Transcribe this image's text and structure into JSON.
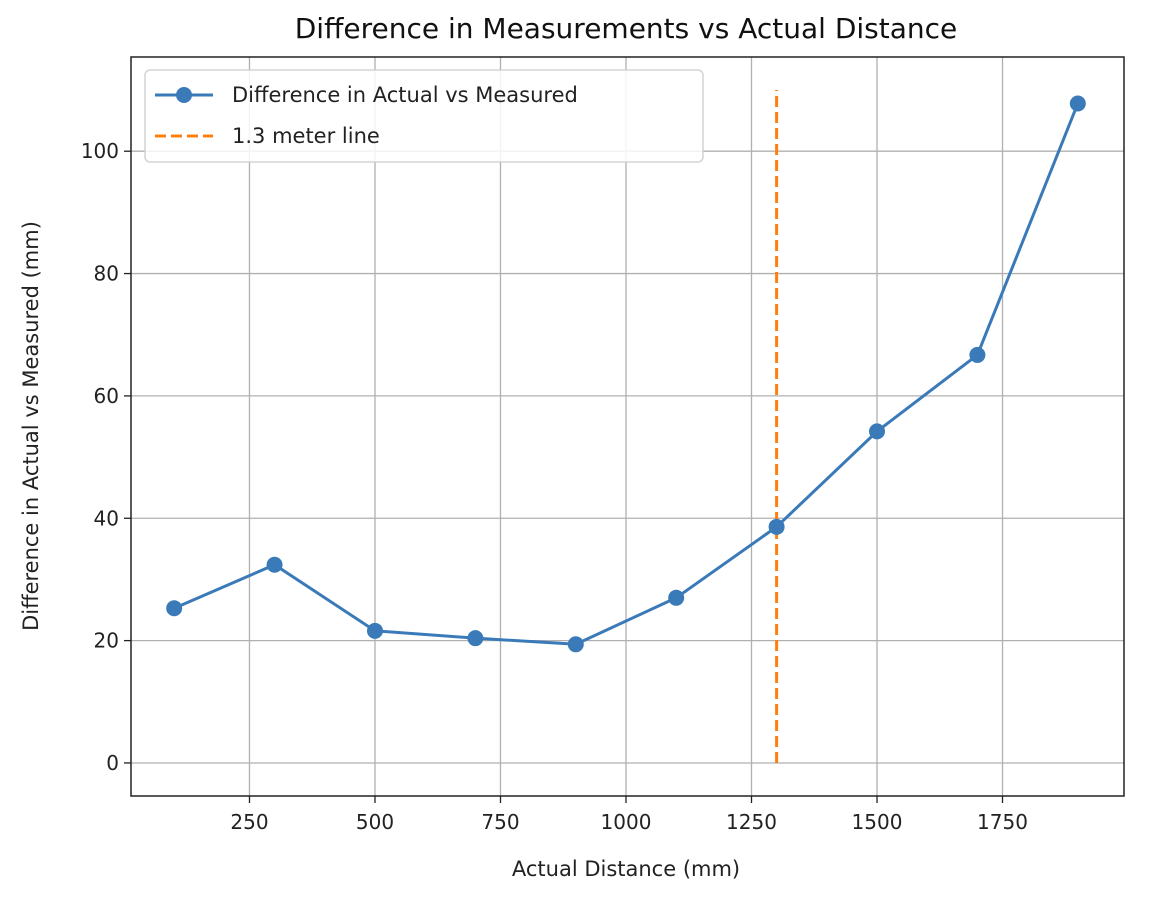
{
  "chart_data": {
    "type": "line",
    "title": "Difference in Measurements vs Actual Distance",
    "xlabel": "Actual Distance (mm)",
    "ylabel": "Difference in Actual vs Measured (mm)",
    "xlim": [
      14,
      1992
    ],
    "ylim": [
      -5.4,
      115.4
    ],
    "xticks": [
      250,
      500,
      750,
      1000,
      1250,
      1500,
      1750
    ],
    "yticks": [
      0,
      20,
      40,
      60,
      80,
      100
    ],
    "grid": true,
    "legend_placement": "top-left",
    "series": [
      {
        "name": "Difference in Actual vs Measured",
        "color": "#3a7ab8",
        "marker": "circle",
        "x": [
          100,
          300,
          500,
          700,
          900,
          1100,
          1300,
          1500,
          1700,
          1900
        ],
        "y": [
          25.3,
          32.4,
          21.6,
          20.4,
          19.4,
          27.0,
          38.6,
          54.2,
          66.7,
          107.8
        ]
      },
      {
        "name": "1.3 meter line",
        "color": "#ff7f0e",
        "style": "dashed",
        "x": [
          1300,
          1300
        ],
        "y": [
          0,
          110
        ]
      }
    ]
  }
}
